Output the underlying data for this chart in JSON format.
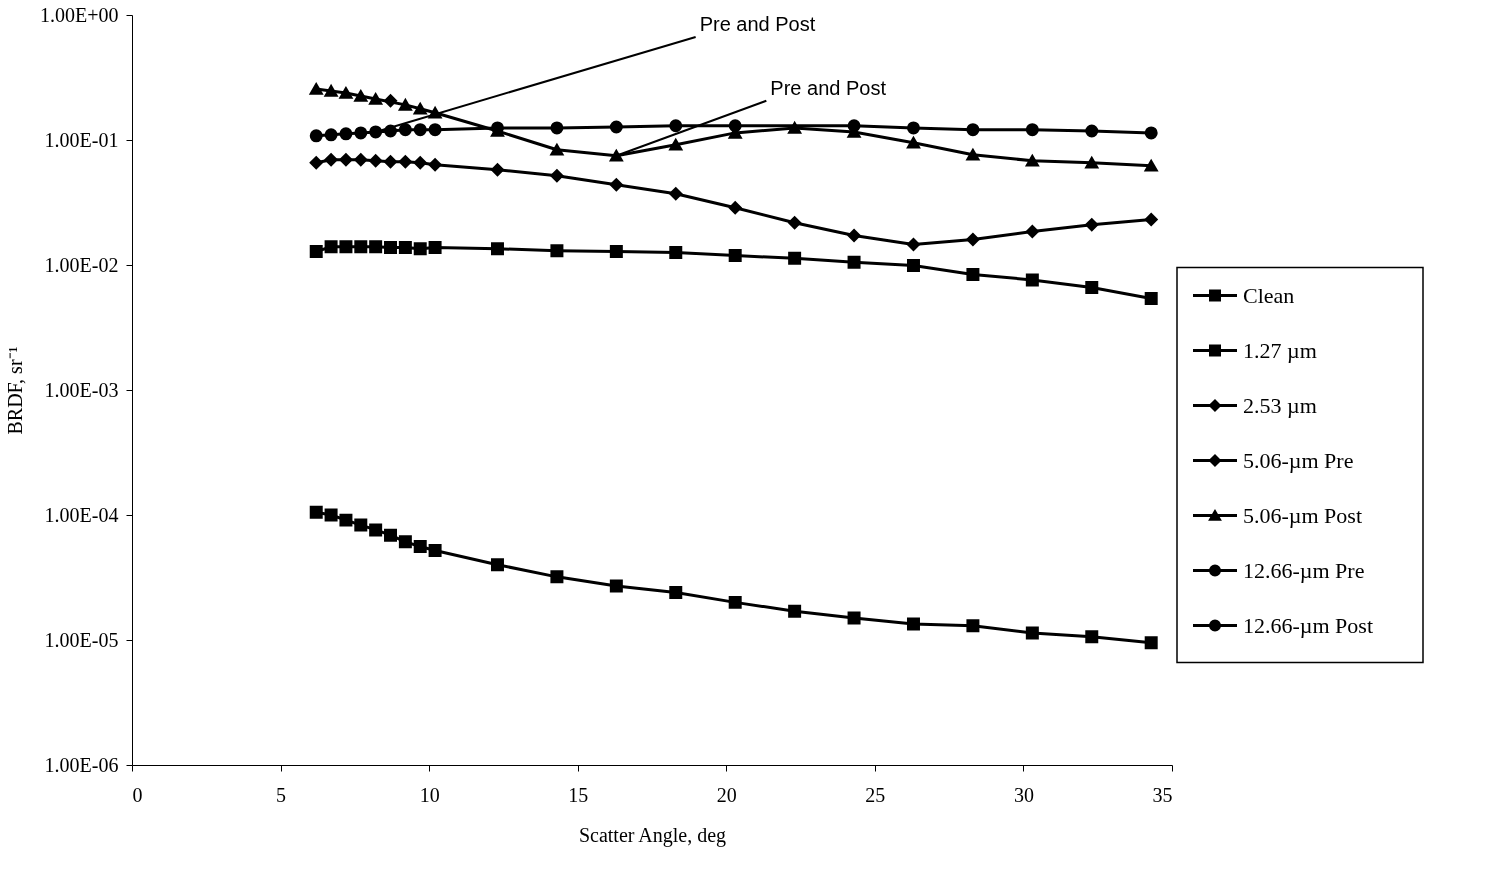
{
  "chart_data": {
    "type": "line",
    "xlabel": "Scatter Angle, deg",
    "ylabel": "BRDF, sr⁻¹",
    "x": [
      6.2,
      6.7,
      7.2,
      7.7,
      8.2,
      8.7,
      9.2,
      9.7,
      10.2,
      12.3,
      14.3,
      16.3,
      18.3,
      20.3,
      22.3,
      24.3,
      26.3,
      28.3,
      30.3,
      32.3,
      34.3
    ],
    "series": [
      {
        "name": "Clean",
        "color": "#000000",
        "marker": "square",
        "values": [
          0.000105,
          0.0001,
          9.1e-05,
          8.3e-05,
          7.6e-05,
          6.9e-05,
          6.1e-05,
          5.6e-05,
          5.2e-05,
          4e-05,
          3.2e-05,
          2.7e-05,
          2.4e-05,
          2e-05,
          1.7e-05,
          1.5e-05,
          1.34e-05,
          1.3e-05,
          1.14e-05,
          1.06e-05,
          9.5e-06
        ]
      },
      {
        "name": "1.27 µm",
        "color": "#000000",
        "marker": "square",
        "values": [
          0.0128,
          0.014,
          0.014,
          0.014,
          0.014,
          0.0138,
          0.0138,
          0.0135,
          0.0138,
          0.0135,
          0.013,
          0.0128,
          0.0126,
          0.0119,
          0.0113,
          0.0105,
          0.0099,
          0.0084,
          0.0076,
          0.0066,
          0.0054
        ]
      },
      {
        "name": "2.53 µm",
        "color": "#000000",
        "marker": "diamond",
        "values": [
          0.0658,
          0.0695,
          0.0695,
          0.0695,
          0.0682,
          0.067,
          0.067,
          0.0658,
          0.0634,
          0.0578,
          0.0518,
          0.0439,
          0.0372,
          0.0287,
          0.0218,
          0.0172,
          0.0146,
          0.016,
          0.0185,
          0.021,
          0.0231
        ]
      },
      {
        "name": "5.06-µm Pre",
        "color": "#000000",
        "marker": "diamond",
        "values": [
          null,
          null,
          null,
          null,
          null,
          0.206,
          null,
          null,
          null,
          null,
          null,
          null,
          null,
          null,
          null,
          null,
          null,
          null,
          null,
          null,
          null
        ]
      },
      {
        "name": "5.06-µm Post",
        "color": "#000000",
        "marker": "triangle",
        "values": [
          0.256,
          0.247,
          0.238,
          0.225,
          0.213,
          null,
          0.191,
          0.178,
          0.165,
          0.118,
          0.0835,
          0.0748,
          0.0916,
          0.114,
          0.125,
          0.116,
          0.095,
          0.0762,
          0.0682,
          0.0658,
          0.0622
        ]
      },
      {
        "name": "12.66-µm Pre",
        "color": "#000000",
        "marker": "circle",
        "values": [
          null,
          null,
          null,
          null,
          null,
          null,
          null,
          null,
          null,
          null,
          null,
          null,
          null,
          null,
          null,
          null,
          null,
          null,
          null,
          null,
          null
        ]
      },
      {
        "name": "12.66-µm Post",
        "color": "#000000",
        "marker": "circle",
        "values": [
          0.108,
          0.11,
          0.112,
          0.114,
          0.116,
          0.118,
          0.121,
          0.121,
          0.121,
          0.125,
          0.125,
          0.127,
          0.13,
          0.13,
          null,
          0.13,
          0.125,
          0.121,
          0.121,
          0.118,
          0.114
        ]
      }
    ],
    "annotations": [
      {
        "text": "Pre and Post",
        "x": 8.2,
        "y": 0.116
      },
      {
        "text": "Pre and Post",
        "x": 16.3,
        "y": 0.0748
      }
    ],
    "log": true,
    "xlim": [
      0,
      35
    ],
    "xticks": [
      0,
      5,
      10,
      15,
      20,
      25,
      30,
      35
    ],
    "ylim": [
      1e-06,
      1
    ],
    "yticks": [
      {
        "value": 1e-06,
        "label": "1.00E-06"
      },
      {
        "value": 1e-05,
        "label": "1.00E-05"
      },
      {
        "value": 0.0001,
        "label": "1.00E-04"
      },
      {
        "value": 0.001,
        "label": "1.00E-03"
      },
      {
        "value": 0.01,
        "label": "1.00E-02"
      },
      {
        "value": 0.1,
        "label": "1.00E-01"
      },
      {
        "value": 1,
        "label": "1.00E+00"
      }
    ],
    "grid": false,
    "legend": "right",
    "line_style": "solid"
  }
}
